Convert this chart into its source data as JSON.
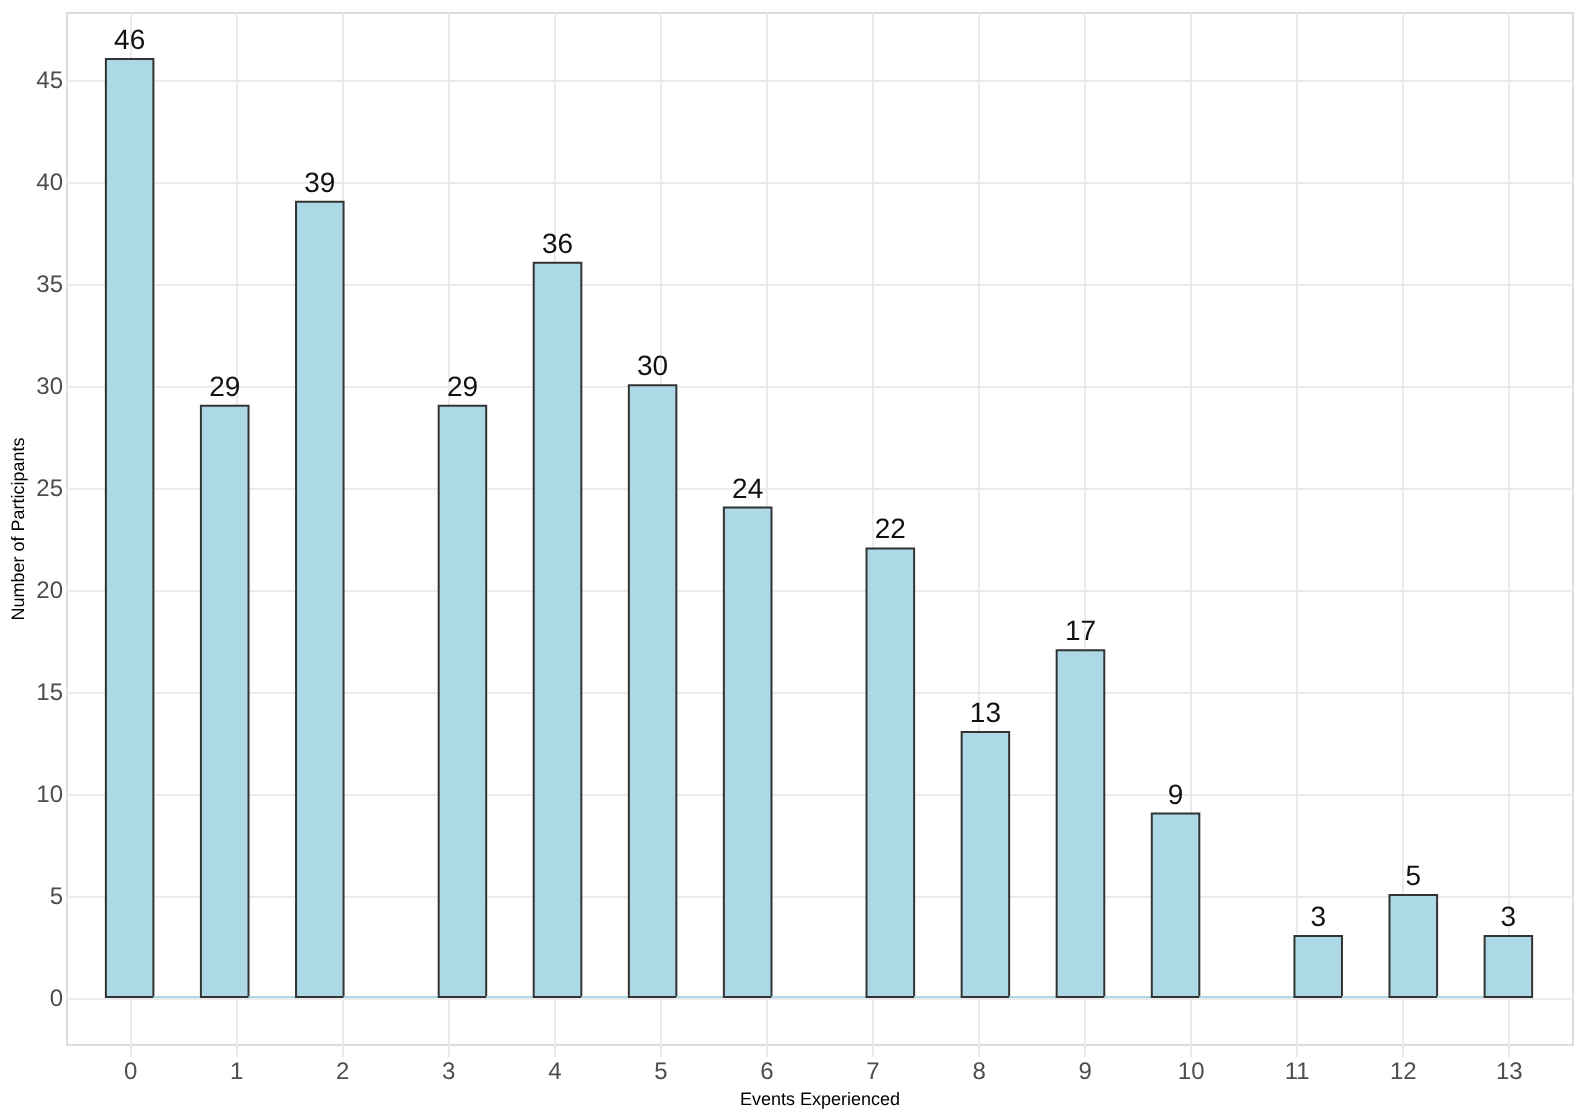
{
  "chart_data": {
    "type": "histogram",
    "xlabel": "Events Experienced",
    "ylabel": "Number of Participants",
    "bins": [
      -0.224,
      0.224,
      0.672,
      1.121,
      1.569,
      2.017,
      2.466,
      2.914,
      3.362,
      3.81,
      4.259,
      4.707,
      5.155,
      5.603,
      6.052,
      6.5,
      6.948,
      7.397,
      7.845,
      8.293,
      8.741,
      9.19,
      9.638,
      10.086,
      10.534,
      10.983,
      11.431,
      11.879,
      12.328,
      12.776,
      13.224
    ],
    "values": [
      46,
      0,
      29,
      0,
      39,
      0,
      0,
      29,
      0,
      36,
      0,
      30,
      0,
      24,
      0,
      0,
      22,
      0,
      13,
      0,
      17,
      0,
      9,
      0,
      0,
      3,
      0,
      5,
      0,
      3
    ],
    "value_labels": [
      "46",
      null,
      "29",
      null,
      "39",
      null,
      null,
      "29",
      null,
      "36",
      null,
      "30",
      null,
      "24",
      null,
      null,
      "22",
      null,
      "13",
      null,
      "17",
      null,
      "9",
      null,
      null,
      "3",
      null,
      "5",
      null,
      "3"
    ],
    "color": "#add8e6",
    "xlim": [
      -0.6,
      13.6
    ],
    "xticks": [
      0,
      1,
      2,
      3,
      4,
      5,
      6,
      7,
      8,
      9,
      10,
      11,
      12,
      13
    ],
    "ylim": [
      -2.3,
      48.3
    ],
    "yticks": [
      0,
      5,
      10,
      15,
      20,
      25,
      30,
      35,
      40,
      45
    ],
    "grid": true
  }
}
